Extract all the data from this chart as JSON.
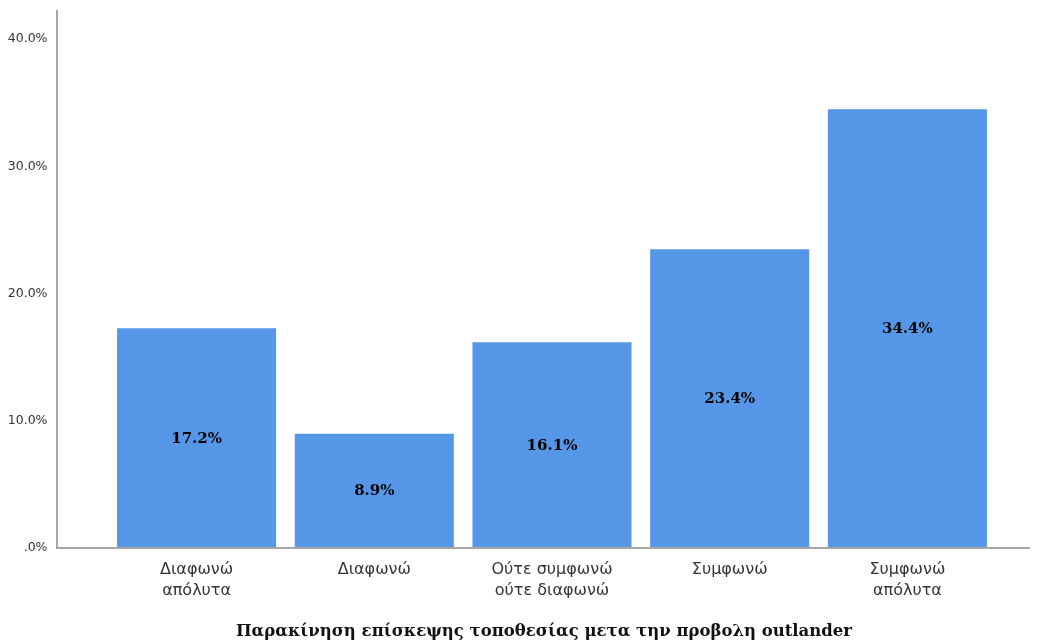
{
  "chart_data": {
    "type": "bar",
    "xlabel": "Παρακίνηση επίσκεψης τοποθεσίας μετα την προβολη outlander",
    "categories": [
      "Διαφωνώ απόλυτα",
      "Διαφωνώ",
      "Ούτε συμφωνώ ούτε διαφωνώ",
      "Συμφωνώ",
      "Συμφωνώ απόλυτα"
    ],
    "values": [
      17.2,
      8.9,
      16.1,
      23.4,
      34.4
    ],
    "value_labels": [
      "17.2%",
      "8.9%",
      "16.1%",
      "23.4%",
      "34.4%"
    ],
    "color": "#5596e6",
    "ylim": [
      0,
      42.2
    ],
    "yticks": [
      {
        "value": 0,
        "label": ".0%"
      },
      {
        "value": 10,
        "label": "10.0%"
      },
      {
        "value": 20,
        "label": "20.0%"
      },
      {
        "value": 30,
        "label": "30.0%"
      },
      {
        "value": 40,
        "label": "40.0%"
      }
    ],
    "grid": false
  }
}
